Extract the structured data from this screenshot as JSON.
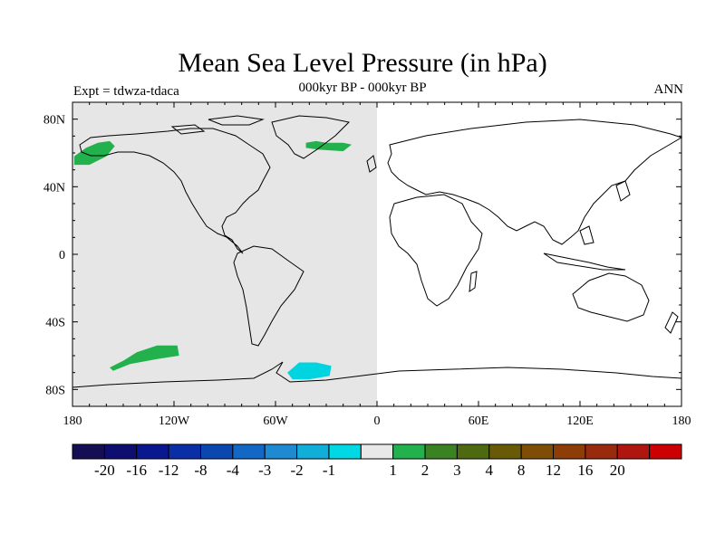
{
  "title": "Mean Sea Level Pressure (in hPa)",
  "subtitle": "000kyr BP - 000kyr BP",
  "left_label": "Expt = tdwza-tdaca",
  "right_label": "ANN",
  "map": {
    "lon_range": [
      -180,
      180
    ],
    "lat_range": [
      -90,
      90
    ],
    "lon_ticks": [
      {
        "value": -180,
        "label": "180"
      },
      {
        "value": -120,
        "label": "120W"
      },
      {
        "value": -60,
        "label": "60W"
      },
      {
        "value": 0,
        "label": "0"
      },
      {
        "value": 60,
        "label": "60E"
      },
      {
        "value": 120,
        "label": "120E"
      },
      {
        "value": 180,
        "label": "180"
      }
    ],
    "lat_ticks": [
      {
        "value": 80,
        "label": "80N"
      },
      {
        "value": 40,
        "label": "40N"
      },
      {
        "value": 0,
        "label": "0"
      },
      {
        "value": -40,
        "label": "40S"
      },
      {
        "value": -80,
        "label": "80S"
      }
    ],
    "background_shading": {
      "lon_range": [
        -180,
        0
      ],
      "color": "#e6e6e6",
      "level": "-1 to 1"
    },
    "anomaly_regions": [
      {
        "name": "alaska-anomaly",
        "color": "#22b14c",
        "level": "1 to 2",
        "points": [
          [
            -179,
            58
          ],
          [
            -172,
            63
          ],
          [
            -165,
            66
          ],
          [
            -158,
            67
          ],
          [
            -155,
            64
          ],
          [
            -160,
            58
          ],
          [
            -170,
            53
          ],
          [
            -179,
            53
          ]
        ]
      },
      {
        "name": "north-atlantic-anomaly",
        "color": "#22b14c",
        "level": "1 to 2",
        "points": [
          [
            -42,
            66
          ],
          [
            -36,
            67
          ],
          [
            -30,
            66
          ],
          [
            -20,
            66
          ],
          [
            -15,
            65
          ],
          [
            -20,
            61
          ],
          [
            -35,
            62
          ],
          [
            -42,
            63
          ]
        ]
      },
      {
        "name": "south-pacific-anomaly",
        "color": "#22b14c",
        "level": "1 to 2",
        "points": [
          [
            -158,
            -67
          ],
          [
            -150,
            -63
          ],
          [
            -142,
            -58
          ],
          [
            -130,
            -54
          ],
          [
            -118,
            -54
          ],
          [
            -117,
            -60
          ],
          [
            -130,
            -62
          ],
          [
            -146,
            -65
          ],
          [
            -156,
            -69
          ]
        ]
      },
      {
        "name": "weddell-sea-anomaly",
        "color": "#00d4e0",
        "level": "-2 to -1",
        "points": [
          [
            -53,
            -70
          ],
          [
            -46,
            -64
          ],
          [
            -36,
            -64
          ],
          [
            -27,
            -66
          ],
          [
            -28,
            -72
          ],
          [
            -40,
            -74
          ],
          [
            -50,
            -74
          ]
        ]
      }
    ]
  },
  "colorbar": {
    "colors": [
      "#160e54",
      "#0e0e70",
      "#0a1890",
      "#0a2ea6",
      "#0a48b0",
      "#1268c4",
      "#1e8ad2",
      "#10aed8",
      "#00d8e4",
      "#e8e8e8",
      "#22b14c",
      "#3a8222",
      "#4e6a10",
      "#685a06",
      "#7e4e06",
      "#8e3c08",
      "#9a2a0c",
      "#b01610",
      "#cc0000"
    ],
    "labels": [
      "-20",
      "-16",
      "-12",
      "-8",
      "-4",
      "-3",
      "-2",
      "-1",
      "1",
      "2",
      "3",
      "4",
      "8",
      "12",
      "16",
      "20"
    ]
  }
}
